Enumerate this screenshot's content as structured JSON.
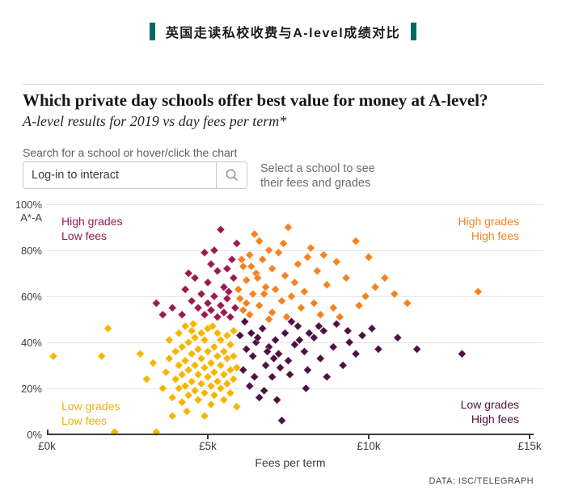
{
  "header": {
    "title": "英国走读私校收费与A-level成绩对比",
    "accent_color": "#006b5e"
  },
  "article": {
    "title": "Which private day schools offer best value for money at A-level?",
    "subtitle": "A-level results for 2019 vs day fees per term*"
  },
  "search": {
    "label": "Search for a school or hover/click the chart",
    "placeholder": "Log-in to interact",
    "icon": "search-icon",
    "note_line1": "Select a school to see",
    "note_line2": "their fees and grades"
  },
  "footer": {
    "credit": "DATA: ISC/TELEGRAPH"
  },
  "chart_data": {
    "type": "scatter",
    "xlabel": "Fees per term",
    "ylabel": "A*-A",
    "xlim": [
      0,
      15.45
    ],
    "ylim": [
      0,
      100
    ],
    "grid": true,
    "x_ticks": [
      {
        "label": "£0k",
        "value": 0
      },
      {
        "label": "£5k",
        "value": 5
      },
      {
        "label": "£10k",
        "value": 10
      },
      {
        "label": "£15k",
        "value": 15
      }
    ],
    "y_ticks": [
      {
        "label": "0%",
        "value": 0
      },
      {
        "label": "20%",
        "value": 20
      },
      {
        "label": "40%",
        "value": 40
      },
      {
        "label": "60%",
        "value": 60
      },
      {
        "label": "80%",
        "value": 80
      },
      {
        "label": "100%",
        "value": 100
      }
    ],
    "quadrants": [
      {
        "id": "tl",
        "line1": "High grades",
        "line2": "Low fees",
        "color": "#9b1b4e"
      },
      {
        "id": "tr",
        "line1": "High grades",
        "line2": "High fees",
        "color": "#f5821f"
      },
      {
        "id": "bl",
        "line1": "Low grades",
        "line2": "Low fees",
        "color": "#edb000"
      },
      {
        "id": "br",
        "line1": "Low grades",
        "line2": "High fees",
        "color": "#4f1142"
      }
    ],
    "series": [
      {
        "name": "Low grades, Low fees",
        "color": "#f7b500",
        "points": [
          [
            0.2,
            34
          ],
          [
            1.9,
            46
          ],
          [
            1.7,
            34
          ],
          [
            3.1,
            24
          ],
          [
            2.1,
            1
          ],
          [
            3.4,
            1
          ],
          [
            3.9,
            8
          ],
          [
            2.9,
            35
          ],
          [
            3.3,
            31
          ],
          [
            3.6,
            20
          ],
          [
            3.7,
            27
          ],
          [
            3.8,
            33
          ],
          [
            3.8,
            41
          ],
          [
            3.9,
            16
          ],
          [
            4,
            24
          ],
          [
            4,
            36
          ],
          [
            4.1,
            20
          ],
          [
            4.1,
            30
          ],
          [
            4.1,
            44
          ],
          [
            4.2,
            14
          ],
          [
            4.2,
            26
          ],
          [
            4.2,
            38
          ],
          [
            4.3,
            21
          ],
          [
            4.3,
            32
          ],
          [
            4.3,
            47
          ],
          [
            4.4,
            17
          ],
          [
            4.4,
            28
          ],
          [
            4.4,
            40
          ],
          [
            4.5,
            23
          ],
          [
            4.5,
            35
          ],
          [
            4.5,
            45
          ],
          [
            4.6,
            19
          ],
          [
            4.6,
            30
          ],
          [
            4.6,
            42
          ],
          [
            4.7,
            15
          ],
          [
            4.7,
            26
          ],
          [
            4.7,
            37
          ],
          [
            4.8,
            22
          ],
          [
            4.8,
            33
          ],
          [
            4.8,
            44
          ],
          [
            4.9,
            18
          ],
          [
            4.9,
            29
          ],
          [
            4.9,
            41
          ],
          [
            5,
            25
          ],
          [
            5,
            36
          ],
          [
            5,
            46
          ],
          [
            5.1,
            21
          ],
          [
            5.1,
            31
          ],
          [
            5.1,
            13
          ],
          [
            5.2,
            27
          ],
          [
            5.2,
            38
          ],
          [
            5.2,
            17
          ],
          [
            5.3,
            23
          ],
          [
            5.3,
            34
          ],
          [
            5.3,
            44
          ],
          [
            5.4,
            20
          ],
          [
            5.4,
            30
          ],
          [
            5.4,
            41
          ],
          [
            5.5,
            26
          ],
          [
            5.5,
            36
          ],
          [
            5.5,
            15
          ],
          [
            5.6,
            22
          ],
          [
            5.6,
            33
          ],
          [
            5.6,
            43
          ],
          [
            5.7,
            28
          ],
          [
            5.7,
            18
          ],
          [
            5.7,
            39
          ],
          [
            5.8,
            24
          ],
          [
            5.8,
            34
          ],
          [
            5.8,
            45
          ],
          [
            5.9,
            29
          ],
          [
            5.9,
            12
          ],
          [
            4.35,
            10
          ],
          [
            4.9,
            8
          ],
          [
            5.15,
            47
          ],
          [
            4.55,
            48
          ]
        ]
      },
      {
        "name": "High grades, Low fees",
        "color": "#9b1b4e",
        "points": [
          [
            5.4,
            89
          ],
          [
            4.9,
            79
          ],
          [
            5.1,
            74
          ],
          [
            5.3,
            71
          ],
          [
            4.6,
            68
          ],
          [
            5,
            66
          ],
          [
            5.5,
            64
          ],
          [
            4.3,
            63
          ],
          [
            4.8,
            61
          ],
          [
            5.2,
            60
          ],
          [
            5.6,
            59
          ],
          [
            4.5,
            58
          ],
          [
            5,
            57
          ],
          [
            5.4,
            56
          ],
          [
            4.7,
            55
          ],
          [
            5.1,
            54
          ],
          [
            5.5,
            53
          ],
          [
            4.2,
            52
          ],
          [
            4.9,
            52
          ],
          [
            5.3,
            51
          ],
          [
            5.7,
            51
          ],
          [
            3.9,
            55
          ],
          [
            3.6,
            52
          ],
          [
            5.8,
            68
          ],
          [
            5.6,
            72
          ],
          [
            5.75,
            76
          ],
          [
            5.2,
            80
          ],
          [
            5.85,
            55
          ],
          [
            5.65,
            62
          ],
          [
            4.4,
            70
          ],
          [
            3.4,
            57
          ],
          [
            5.9,
            83
          ]
        ]
      },
      {
        "name": "Low grades, High fees",
        "color": "#4f1142",
        "points": [
          [
            7.3,
            6
          ],
          [
            6.6,
            16
          ],
          [
            6.3,
            21
          ],
          [
            7,
            25
          ],
          [
            6.1,
            28
          ],
          [
            6.8,
            30
          ],
          [
            7.5,
            32
          ],
          [
            6.4,
            34
          ],
          [
            7.2,
            35
          ],
          [
            8,
            36
          ],
          [
            6.2,
            37
          ],
          [
            6.9,
            38
          ],
          [
            7.7,
            39
          ],
          [
            6.5,
            40
          ],
          [
            7.1,
            41
          ],
          [
            8.3,
            42
          ],
          [
            6,
            43
          ],
          [
            7.4,
            44
          ],
          [
            8.6,
            45
          ],
          [
            6.7,
            46
          ],
          [
            7.8,
            47
          ],
          [
            9,
            48
          ],
          [
            6.15,
            49
          ],
          [
            7.6,
            49
          ],
          [
            8.9,
            38
          ],
          [
            9.4,
            40
          ],
          [
            9.8,
            43
          ],
          [
            10.3,
            37
          ],
          [
            10.9,
            42
          ],
          [
            11.5,
            37
          ],
          [
            8.1,
            28
          ],
          [
            8.5,
            33
          ],
          [
            9.2,
            30
          ],
          [
            8.7,
            25
          ],
          [
            9.6,
            35
          ],
          [
            10.1,
            46
          ],
          [
            6.35,
            44
          ],
          [
            6.55,
            42
          ],
          [
            6.85,
            36
          ],
          [
            7.05,
            33
          ],
          [
            7.25,
            29
          ],
          [
            7.55,
            26
          ],
          [
            7.85,
            41
          ],
          [
            8.15,
            44
          ],
          [
            8.45,
            47
          ],
          [
            9.35,
            45
          ],
          [
            6.45,
            25
          ],
          [
            6.75,
            19
          ],
          [
            7.15,
            15
          ],
          [
            8.05,
            20
          ],
          [
            12.9,
            35
          ]
        ]
      },
      {
        "name": "High grades, High fees",
        "color": "#f5821f",
        "points": [
          [
            7.5,
            90
          ],
          [
            6.6,
            84
          ],
          [
            9.6,
            84
          ],
          [
            6.9,
            80
          ],
          [
            7.2,
            79
          ],
          [
            6.3,
            78
          ],
          [
            8.1,
            77
          ],
          [
            6.7,
            76
          ],
          [
            9,
            75
          ],
          [
            7.8,
            74
          ],
          [
            6.1,
            73
          ],
          [
            7,
            72
          ],
          [
            8.4,
            71
          ],
          [
            6.5,
            70
          ],
          [
            7.4,
            69
          ],
          [
            9.3,
            68
          ],
          [
            6.2,
            67
          ],
          [
            7.7,
            66
          ],
          [
            8.7,
            65
          ],
          [
            6.8,
            64
          ],
          [
            7.1,
            63
          ],
          [
            8,
            62
          ],
          [
            13.4,
            62
          ],
          [
            6.4,
            61
          ],
          [
            7.6,
            60
          ],
          [
            9.9,
            60
          ],
          [
            6,
            59
          ],
          [
            7.3,
            58
          ],
          [
            8.3,
            57
          ],
          [
            6.6,
            56
          ],
          [
            7.9,
            55
          ],
          [
            8.9,
            55
          ],
          [
            6.1,
            54
          ],
          [
            7,
            53
          ],
          [
            8.5,
            52
          ],
          [
            6.3,
            52
          ],
          [
            7.45,
            51
          ],
          [
            9.1,
            51
          ],
          [
            6.9,
            50
          ],
          [
            10.2,
            64
          ],
          [
            10.8,
            61
          ],
          [
            11.2,
            57
          ],
          [
            10.5,
            68
          ],
          [
            9.7,
            56
          ],
          [
            6.05,
            76
          ],
          [
            6.35,
            73
          ],
          [
            6.55,
            68
          ],
          [
            6.75,
            61
          ],
          [
            6.2,
            57
          ],
          [
            5.95,
            63
          ],
          [
            8.2,
            81
          ],
          [
            8.6,
            78
          ],
          [
            7.35,
            83
          ],
          [
            6.45,
            87
          ],
          [
            10,
            77
          ]
        ]
      }
    ]
  }
}
